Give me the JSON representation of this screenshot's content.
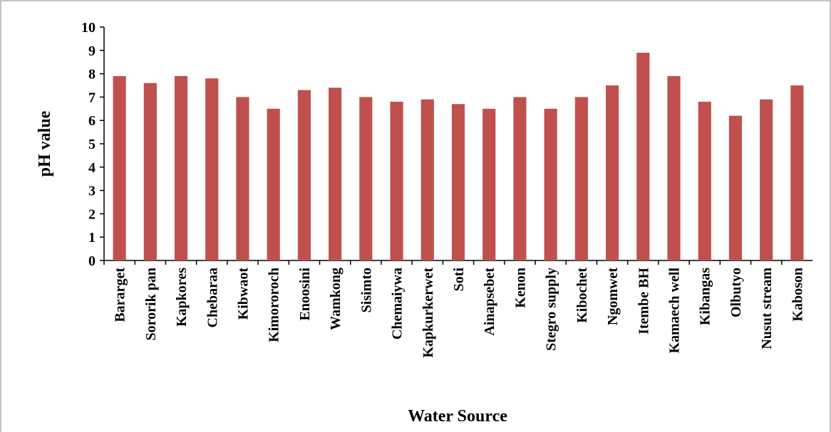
{
  "chart_data": {
    "type": "bar",
    "x_label": "Water Source",
    "y_label": "pH value",
    "categories": [
      "Bararget",
      "Sororik pan",
      "Kapkores",
      "Chebaraa",
      "Kibwaot",
      "Kimororoch",
      "Enoosini",
      "Wamkong",
      "Sisimto",
      "Chemaiywa",
      "Kapkurkerwet",
      "Soti",
      "Ainapsebet",
      "Kenon",
      "Stegro supply",
      "Kibochet",
      "Ngomwet",
      "Itembe BH",
      "Kamaech well",
      "Kibangas",
      "Olbutyo",
      "Nusut stream",
      "Kaboson"
    ],
    "values": [
      7.9,
      7.6,
      7.9,
      7.8,
      7.0,
      6.5,
      7.3,
      7.4,
      7.0,
      6.8,
      6.9,
      6.7,
      6.5,
      7.0,
      6.5,
      7.0,
      7.5,
      8.9,
      7.9,
      6.8,
      6.2,
      6.9,
      7.5
    ],
    "color": "#c0504d",
    "ylim": [
      0,
      10
    ],
    "yticks": [
      0,
      1,
      2,
      3,
      4,
      5,
      6,
      7,
      8,
      9,
      10
    ],
    "grid": false
  }
}
